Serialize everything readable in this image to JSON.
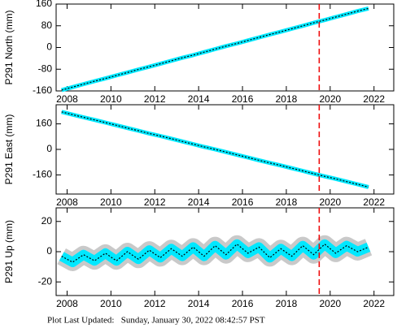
{
  "charts": [
    {
      "type": "line",
      "ylabel": "P291 North (mm)",
      "xlim": [
        2007.5,
        2022.9
      ],
      "xticks": [
        2008,
        2010,
        2012,
        2014,
        2016,
        2018,
        2020,
        2022
      ],
      "ylim": [
        -160,
        160
      ],
      "yticks": [
        -160,
        -80,
        0,
        80,
        160
      ],
      "event_x": 2019.5,
      "x": [
        2007.75,
        2008.25,
        2008.75,
        2009.25,
        2009.75,
        2010.25,
        2010.75,
        2011.25,
        2011.75,
        2012.25,
        2012.75,
        2013.25,
        2013.75,
        2014.25,
        2014.75,
        2015.25,
        2015.75,
        2016.25,
        2016.75,
        2017.25,
        2017.75,
        2018.25,
        2018.75,
        2019.25,
        2019.75,
        2020.25,
        2020.75,
        2021.25,
        2021.75
      ],
      "series": [
        {
          "color": "#00e8ff",
          "values": [
            -157,
            -146,
            -135,
            -124,
            -114,
            -103,
            -92,
            -81,
            -71,
            -60,
            -49,
            -38,
            -28,
            -17,
            -6,
            5,
            15,
            26,
            37,
            48,
            58,
            69,
            80,
            91,
            101,
            112,
            123,
            134,
            144
          ]
        }
      ]
    },
    {
      "type": "line",
      "ylabel": "P291 East (mm)",
      "xlim": [
        2007.5,
        2022.9
      ],
      "xticks": [
        2008,
        2010,
        2012,
        2014,
        2016,
        2018,
        2020,
        2022
      ],
      "ylim": [
        -280,
        280
      ],
      "yticks": [
        -160,
        0,
        160
      ],
      "event_x": 2019.5,
      "x": [
        2007.75,
        2008.25,
        2008.75,
        2009.25,
        2009.75,
        2010.25,
        2010.75,
        2011.25,
        2011.75,
        2012.25,
        2012.75,
        2013.25,
        2013.75,
        2014.25,
        2014.75,
        2015.25,
        2015.75,
        2016.25,
        2016.75,
        2017.25,
        2017.75,
        2018.25,
        2018.75,
        2019.25,
        2019.75,
        2020.25,
        2020.75,
        2021.25,
        2021.75
      ],
      "series": [
        {
          "color": "#00e8ff",
          "values": [
            235,
            218,
            201,
            185,
            168,
            151,
            134,
            117,
            100,
            84,
            67,
            50,
            33,
            16,
            0,
            -17,
            -34,
            -51,
            -68,
            -85,
            -101,
            -118,
            -135,
            -152,
            -169,
            -185,
            -202,
            -219,
            -236
          ]
        }
      ]
    },
    {
      "type": "line",
      "ylabel": "P291 Up (mm)",
      "xlim": [
        2007.5,
        2022.9
      ],
      "xticks": [
        2008,
        2010,
        2012,
        2014,
        2016,
        2018,
        2020,
        2022
      ],
      "ylim": [
        -29,
        29
      ],
      "yticks": [
        -20,
        0,
        20
      ],
      "event_x": 2019.5,
      "x": [
        2007.75,
        2008.25,
        2008.75,
        2009.25,
        2009.75,
        2010.25,
        2010.75,
        2011.25,
        2011.75,
        2012.25,
        2012.75,
        2013.25,
        2013.75,
        2014.25,
        2014.75,
        2015.25,
        2015.75,
        2016.25,
        2016.75,
        2017.25,
        2017.75,
        2018.25,
        2018.75,
        2019.25,
        2019.75,
        2020.25,
        2020.75,
        2021.25,
        2021.75
      ],
      "series": [
        {
          "color": "#00e8ff",
          "values": [
            -3,
            -7,
            -2,
            -6,
            -1,
            -6,
            0,
            -5,
            1,
            -4,
            2,
            -3,
            3,
            -3,
            4,
            -2,
            5,
            -1,
            3,
            -4,
            2,
            -3,
            4,
            -2,
            5,
            -1,
            4,
            0,
            3
          ]
        }
      ]
    }
  ],
  "footer": "Plot Last Updated:   Sunday, January 30, 2022 08:42:57 PST"
}
